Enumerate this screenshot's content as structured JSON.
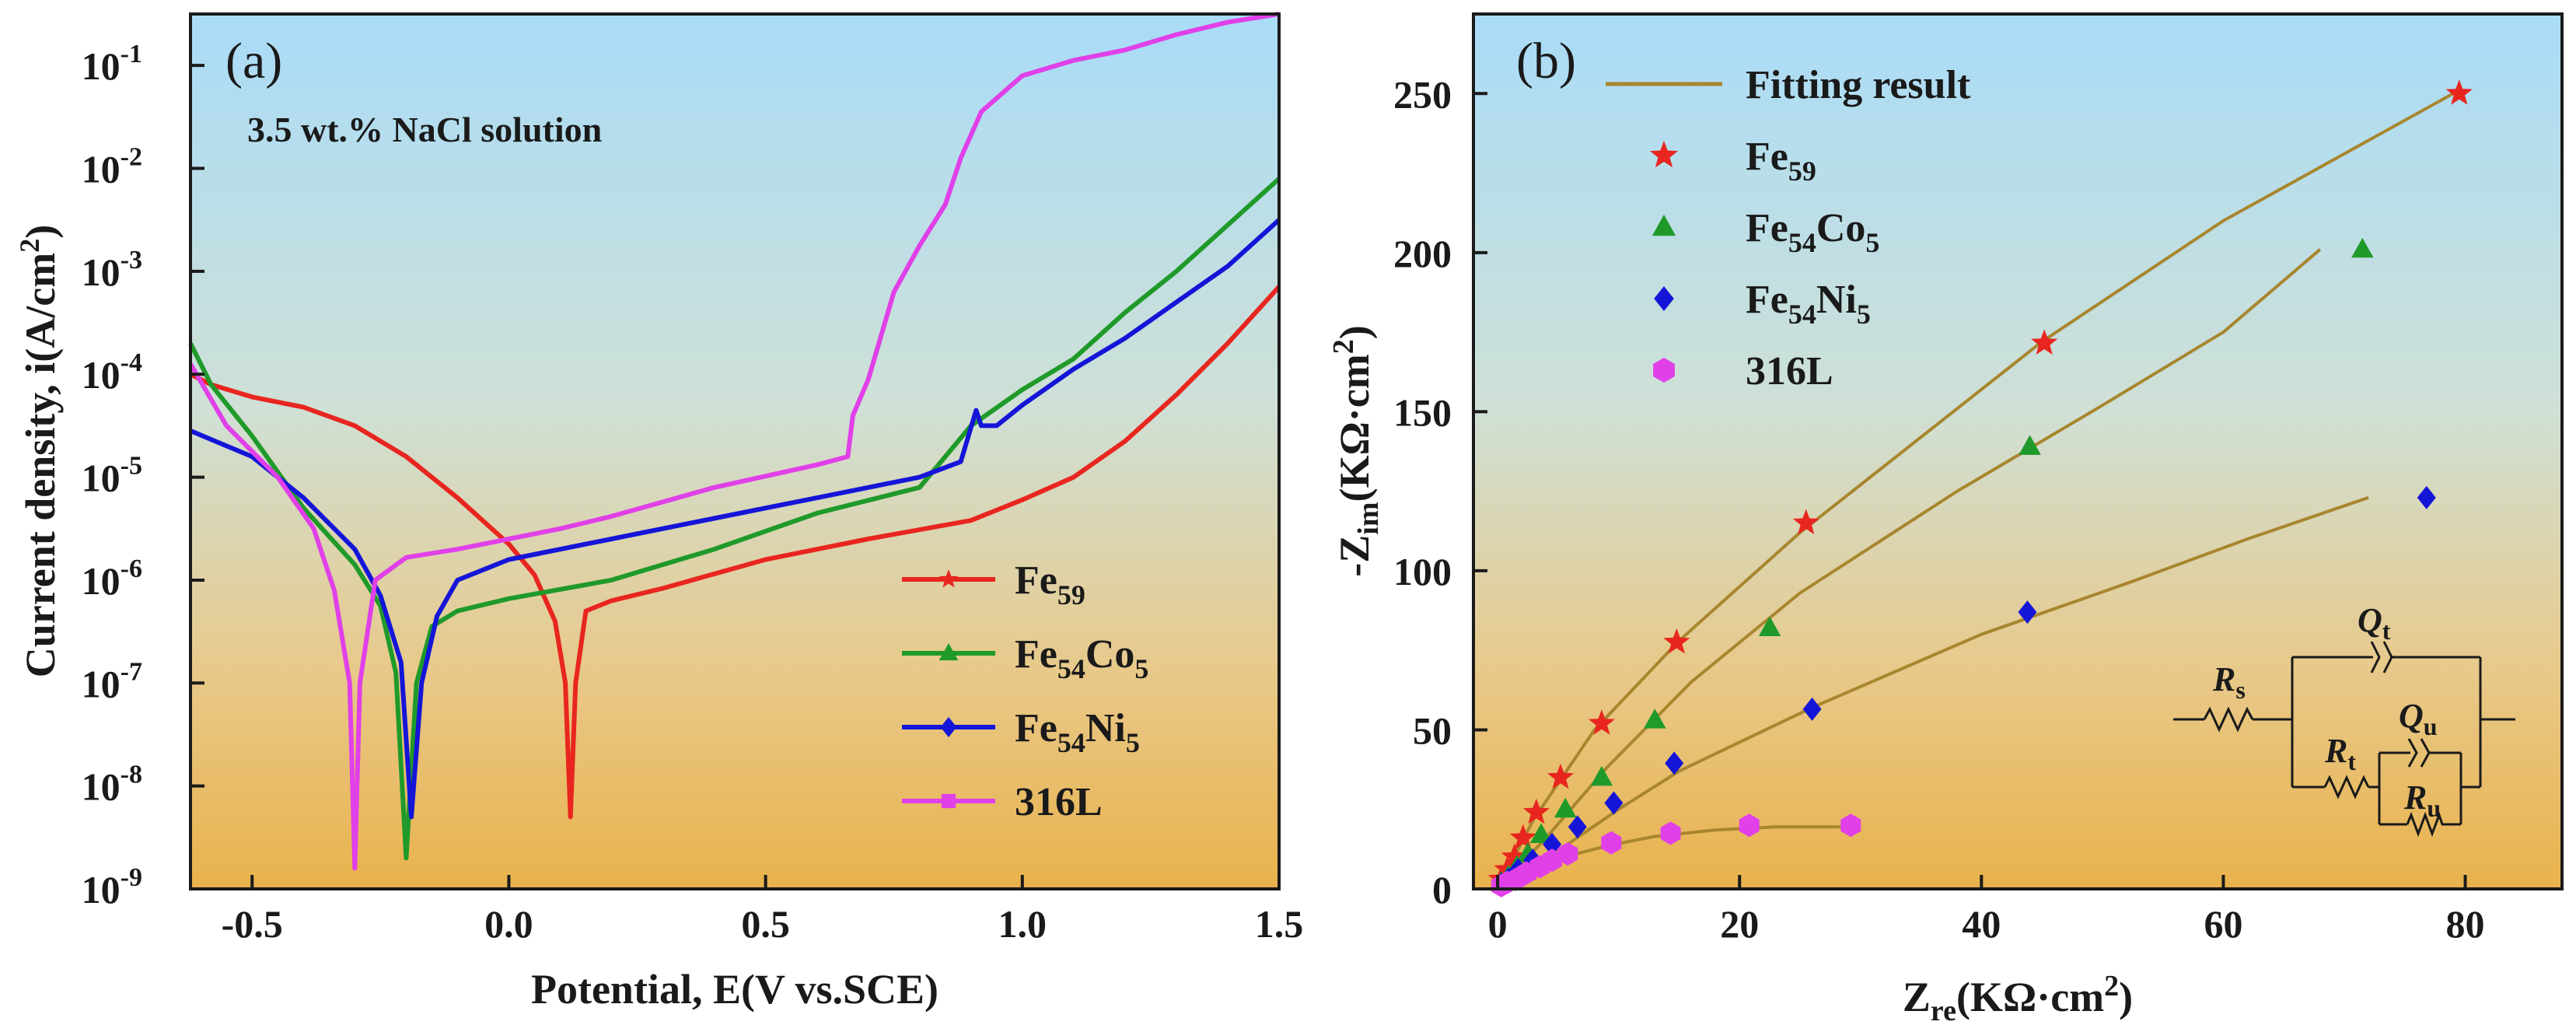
{
  "chart_data": [
    {
      "type": "line",
      "panel_label": "(a)",
      "annotation": "3.5 wt.% NaCl solution",
      "xlabel": "Potential, E(V vs.SCE)",
      "ylabel": "Current density, i(A/cm",
      "ylabel_sup": "2",
      "ylabel_close": ")",
      "xlim": [
        -0.62,
        1.5
      ],
      "ylim_log10": [
        -9,
        -0.5
      ],
      "yscale": "log",
      "x_ticks": [
        {
          "v": -0.5,
          "label": "-0.5"
        },
        {
          "v": 0.0,
          "label": "0.0"
        },
        {
          "v": 0.5,
          "label": "0.5"
        },
        {
          "v": 1.0,
          "label": "1.0"
        },
        {
          "v": 1.5,
          "label": "1.5"
        }
      ],
      "y_ticks": [
        {
          "exp": -9,
          "base": "10",
          "sup": "-9"
        },
        {
          "exp": -8,
          "base": "10",
          "sup": "-8"
        },
        {
          "exp": -7,
          "base": "10",
          "sup": "-7"
        },
        {
          "exp": -6,
          "base": "10",
          "sup": "-6"
        },
        {
          "exp": -5,
          "base": "10",
          "sup": "-5"
        },
        {
          "exp": -4,
          "base": "10",
          "sup": "-4"
        },
        {
          "exp": -3,
          "base": "10",
          "sup": "-3"
        },
        {
          "exp": -2,
          "base": "10",
          "sup": "-2"
        },
        {
          "exp": -1,
          "base": "10",
          "sup": "-1"
        }
      ],
      "legend": [
        {
          "name": "Fe",
          "sub": "59",
          "tail": "",
          "tail_sub": "",
          "color": "#e8261f",
          "marker": "star"
        },
        {
          "name": "Fe",
          "sub": "54",
          "tail": "Co",
          "tail_sub": "5",
          "color": "#1f9a2a",
          "marker": "triangle"
        },
        {
          "name": "Fe",
          "sub": "54",
          "tail": "Ni",
          "tail_sub": "5",
          "color": "#1515d8",
          "marker": "diamond"
        },
        {
          "name": "316L",
          "sub": "",
          "tail": "",
          "tail_sub": "",
          "color": "#e040e8",
          "marker": "square"
        }
      ],
      "series": [
        {
          "name": "Fe59",
          "color": "#e8261f",
          "points": [
            [
              -0.62,
              -4.0
            ],
            [
              -0.58,
              -4.1
            ],
            [
              -0.5,
              -4.22
            ],
            [
              -0.4,
              -4.32
            ],
            [
              -0.3,
              -4.5
            ],
            [
              -0.2,
              -4.8
            ],
            [
              -0.1,
              -5.2
            ],
            [
              0.0,
              -5.65
            ],
            [
              0.05,
              -5.95
            ],
            [
              0.09,
              -6.4
            ],
            [
              0.11,
              -7.0
            ],
            [
              0.12,
              -8.3
            ],
            [
              0.13,
              -7.0
            ],
            [
              0.15,
              -6.3
            ],
            [
              0.2,
              -6.2
            ],
            [
              0.3,
              -6.08
            ],
            [
              0.5,
              -5.8
            ],
            [
              0.7,
              -5.6
            ],
            [
              0.9,
              -5.42
            ],
            [
              1.0,
              -5.22
            ],
            [
              1.1,
              -5.0
            ],
            [
              1.2,
              -4.65
            ],
            [
              1.3,
              -4.2
            ],
            [
              1.4,
              -3.7
            ],
            [
              1.5,
              -3.15
            ]
          ]
        },
        {
          "name": "Fe54Co5",
          "color": "#1f9a2a",
          "points": [
            [
              -0.62,
              -3.7
            ],
            [
              -0.58,
              -4.1
            ],
            [
              -0.5,
              -4.6
            ],
            [
              -0.4,
              -5.3
            ],
            [
              -0.3,
              -5.85
            ],
            [
              -0.25,
              -6.25
            ],
            [
              -0.22,
              -6.9
            ],
            [
              -0.2,
              -8.7
            ],
            [
              -0.18,
              -7.0
            ],
            [
              -0.15,
              -6.45
            ],
            [
              -0.1,
              -6.3
            ],
            [
              0.0,
              -6.18
            ],
            [
              0.2,
              -6.0
            ],
            [
              0.4,
              -5.7
            ],
            [
              0.6,
              -5.35
            ],
            [
              0.8,
              -5.1
            ],
            [
              0.9,
              -4.5
            ],
            [
              1.0,
              -4.15
            ],
            [
              1.1,
              -3.85
            ],
            [
              1.2,
              -3.4
            ],
            [
              1.3,
              -3.0
            ],
            [
              1.4,
              -2.55
            ],
            [
              1.5,
              -2.1
            ]
          ]
        },
        {
          "name": "Fe54Ni5",
          "color": "#1515d8",
          "points": [
            [
              -0.62,
              -4.55
            ],
            [
              -0.5,
              -4.8
            ],
            [
              -0.4,
              -5.2
            ],
            [
              -0.3,
              -5.7
            ],
            [
              -0.25,
              -6.15
            ],
            [
              -0.21,
              -6.8
            ],
            [
              -0.19,
              -8.3
            ],
            [
              -0.17,
              -7.0
            ],
            [
              -0.14,
              -6.35
            ],
            [
              -0.1,
              -6.0
            ],
            [
              0.0,
              -5.8
            ],
            [
              0.2,
              -5.6
            ],
            [
              0.4,
              -5.4
            ],
            [
              0.6,
              -5.2
            ],
            [
              0.8,
              -5.0
            ],
            [
              0.88,
              -4.85
            ],
            [
              0.91,
              -4.35
            ],
            [
              0.92,
              -4.5
            ],
            [
              0.95,
              -4.5
            ],
            [
              1.0,
              -4.3
            ],
            [
              1.1,
              -3.95
            ],
            [
              1.2,
              -3.65
            ],
            [
              1.3,
              -3.3
            ],
            [
              1.4,
              -2.95
            ],
            [
              1.5,
              -2.5
            ]
          ]
        },
        {
          "name": "316L",
          "color": "#e040e8",
          "points": [
            [
              -0.62,
              -3.9
            ],
            [
              -0.55,
              -4.5
            ],
            [
              -0.45,
              -5.0
            ],
            [
              -0.38,
              -5.5
            ],
            [
              -0.34,
              -6.1
            ],
            [
              -0.31,
              -7.0
            ],
            [
              -0.3,
              -8.8
            ],
            [
              -0.29,
              -7.0
            ],
            [
              -0.26,
              -6.0
            ],
            [
              -0.2,
              -5.78
            ],
            [
              -0.1,
              -5.7
            ],
            [
              0.0,
              -5.6
            ],
            [
              0.1,
              -5.5
            ],
            [
              0.2,
              -5.38
            ],
            [
              0.4,
              -5.1
            ],
            [
              0.6,
              -4.88
            ],
            [
              0.66,
              -4.8
            ],
            [
              0.67,
              -4.4
            ],
            [
              0.7,
              -4.05
            ],
            [
              0.75,
              -3.2
            ],
            [
              0.8,
              -2.75
            ],
            [
              0.85,
              -2.35
            ],
            [
              0.88,
              -1.9
            ],
            [
              0.92,
              -1.45
            ],
            [
              1.0,
              -1.1
            ],
            [
              1.1,
              -0.95
            ],
            [
              1.2,
              -0.85
            ],
            [
              1.3,
              -0.7
            ],
            [
              1.4,
              -0.58
            ],
            [
              1.5,
              -0.5
            ]
          ]
        }
      ]
    },
    {
      "type": "scatter",
      "panel_label": "(b)",
      "xlabel_main": "Z",
      "xlabel_sub": "re",
      "xlabel_rest": "(KΩ·cm",
      "xlabel_sup": "2",
      "xlabel_close": ")",
      "ylabel_main": "-Z",
      "ylabel_sub": "im",
      "ylabel_rest": "(KΩ·cm",
      "ylabel_sup": "2",
      "ylabel_close": ")",
      "xlim": [
        -2,
        88
      ],
      "ylim": [
        0,
        275
      ],
      "x_ticks": [
        0,
        20,
        40,
        60,
        80
      ],
      "y_ticks": [
        0,
        50,
        100,
        150,
        200,
        250
      ],
      "legend": [
        {
          "name": "Fitting result",
          "sub": "",
          "tail": "",
          "tail_sub": "",
          "color": "#a8862e",
          "marker": "line"
        },
        {
          "name": "Fe",
          "sub": "59",
          "tail": "",
          "tail_sub": "",
          "color": "#e8261f",
          "marker": "star"
        },
        {
          "name": "Fe",
          "sub": "54",
          "tail": "Co",
          "tail_sub": "5",
          "color": "#1f9a2a",
          "marker": "triangle"
        },
        {
          "name": "Fe",
          "sub": "54",
          "tail": "Ni",
          "tail_sub": "5",
          "color": "#1515d8",
          "marker": "diamond"
        },
        {
          "name": "316L",
          "sub": "",
          "tail": "",
          "tail_sub": "",
          "color": "#e040e8",
          "marker": "hexagon"
        }
      ],
      "circuit": {
        "Rs": "R",
        "Rs_sub": "s",
        "Qt": "Q",
        "Qt_sub": "t",
        "Rt": "R",
        "Rt_sub": "t",
        "Qu": "Q",
        "Qu_sub": "u",
        "Ru": "R",
        "Ru_sub": "u"
      },
      "series": [
        {
          "name": "Fe59",
          "color": "#e8261f",
          "marker": "star",
          "points": [
            [
              0.3,
              3
            ],
            [
              0.8,
              6
            ],
            [
              1.4,
              10
            ],
            [
              2.1,
              16
            ],
            [
              3.2,
              24
            ],
            [
              5.2,
              35
            ],
            [
              8.6,
              52
            ],
            [
              14.8,
              77.5
            ],
            [
              25.5,
              115
            ],
            [
              45.2,
              171.5
            ],
            [
              79.5,
              250
            ]
          ],
          "fit": [
            [
              0,
              0
            ],
            [
              3,
              22
            ],
            [
              8,
              50
            ],
            [
              15,
              78
            ],
            [
              25,
              112
            ],
            [
              35,
              142
            ],
            [
              45,
              172
            ],
            [
              60,
              210
            ],
            [
              79,
              250
            ]
          ]
        },
        {
          "name": "Fe54Co5",
          "color": "#1f9a2a",
          "marker": "triangle",
          "points": [
            [
              0.3,
              2
            ],
            [
              0.9,
              4
            ],
            [
              1.6,
              7
            ],
            [
              2.5,
              11
            ],
            [
              3.6,
              17
            ],
            [
              5.6,
              25
            ],
            [
              8.6,
              35
            ],
            [
              13.0,
              53
            ],
            [
              22.5,
              82
            ],
            [
              44.0,
              139
            ],
            [
              71.5,
              201
            ]
          ],
          "fit": [
            [
              0,
              0
            ],
            [
              4,
              16
            ],
            [
              9,
              38
            ],
            [
              16,
              65
            ],
            [
              25,
              93
            ],
            [
              38,
              125
            ],
            [
              50,
              152
            ],
            [
              60,
              175
            ],
            [
              68,
              201
            ]
          ]
        },
        {
          "name": "Fe54Ni5",
          "color": "#1515d8",
          "marker": "diamond",
          "points": [
            [
              0.3,
              1.5
            ],
            [
              0.9,
              3
            ],
            [
              1.7,
              6
            ],
            [
              2.9,
              9
            ],
            [
              4.5,
              14
            ],
            [
              6.6,
              19.5
            ],
            [
              9.6,
              27
            ],
            [
              14.6,
              39.5
            ],
            [
              26.0,
              56.5
            ],
            [
              43.8,
              87
            ],
            [
              76.8,
              123
            ]
          ],
          "fit": [
            [
              0,
              0
            ],
            [
              5,
              12
            ],
            [
              10,
              25
            ],
            [
              15,
              37
            ],
            [
              26,
              57
            ],
            [
              40,
              80
            ],
            [
              52,
              96
            ],
            [
              62,
              110
            ],
            [
              72,
              123
            ]
          ]
        },
        {
          "name": "316L",
          "color": "#e040e8",
          "marker": "hexagon",
          "points": [
            [
              0.3,
              1
            ],
            [
              0.8,
              2
            ],
            [
              1.5,
              3
            ],
            [
              2.4,
              5
            ],
            [
              3.5,
              7
            ],
            [
              4.5,
              9
            ],
            [
              5.8,
              11
            ],
            [
              9.4,
              14.5
            ],
            [
              14.3,
              17.5
            ],
            [
              20.8,
              20
            ],
            [
              29.2,
              20
            ]
          ],
          "fit": [
            [
              0,
              0
            ],
            [
              2,
              4
            ],
            [
              4,
              8
            ],
            [
              6,
              10.5
            ],
            [
              9,
              13.5
            ],
            [
              13,
              16.5
            ],
            [
              18,
              18.5
            ],
            [
              23,
              19.5
            ],
            [
              29,
              19.5
            ]
          ]
        }
      ]
    }
  ]
}
